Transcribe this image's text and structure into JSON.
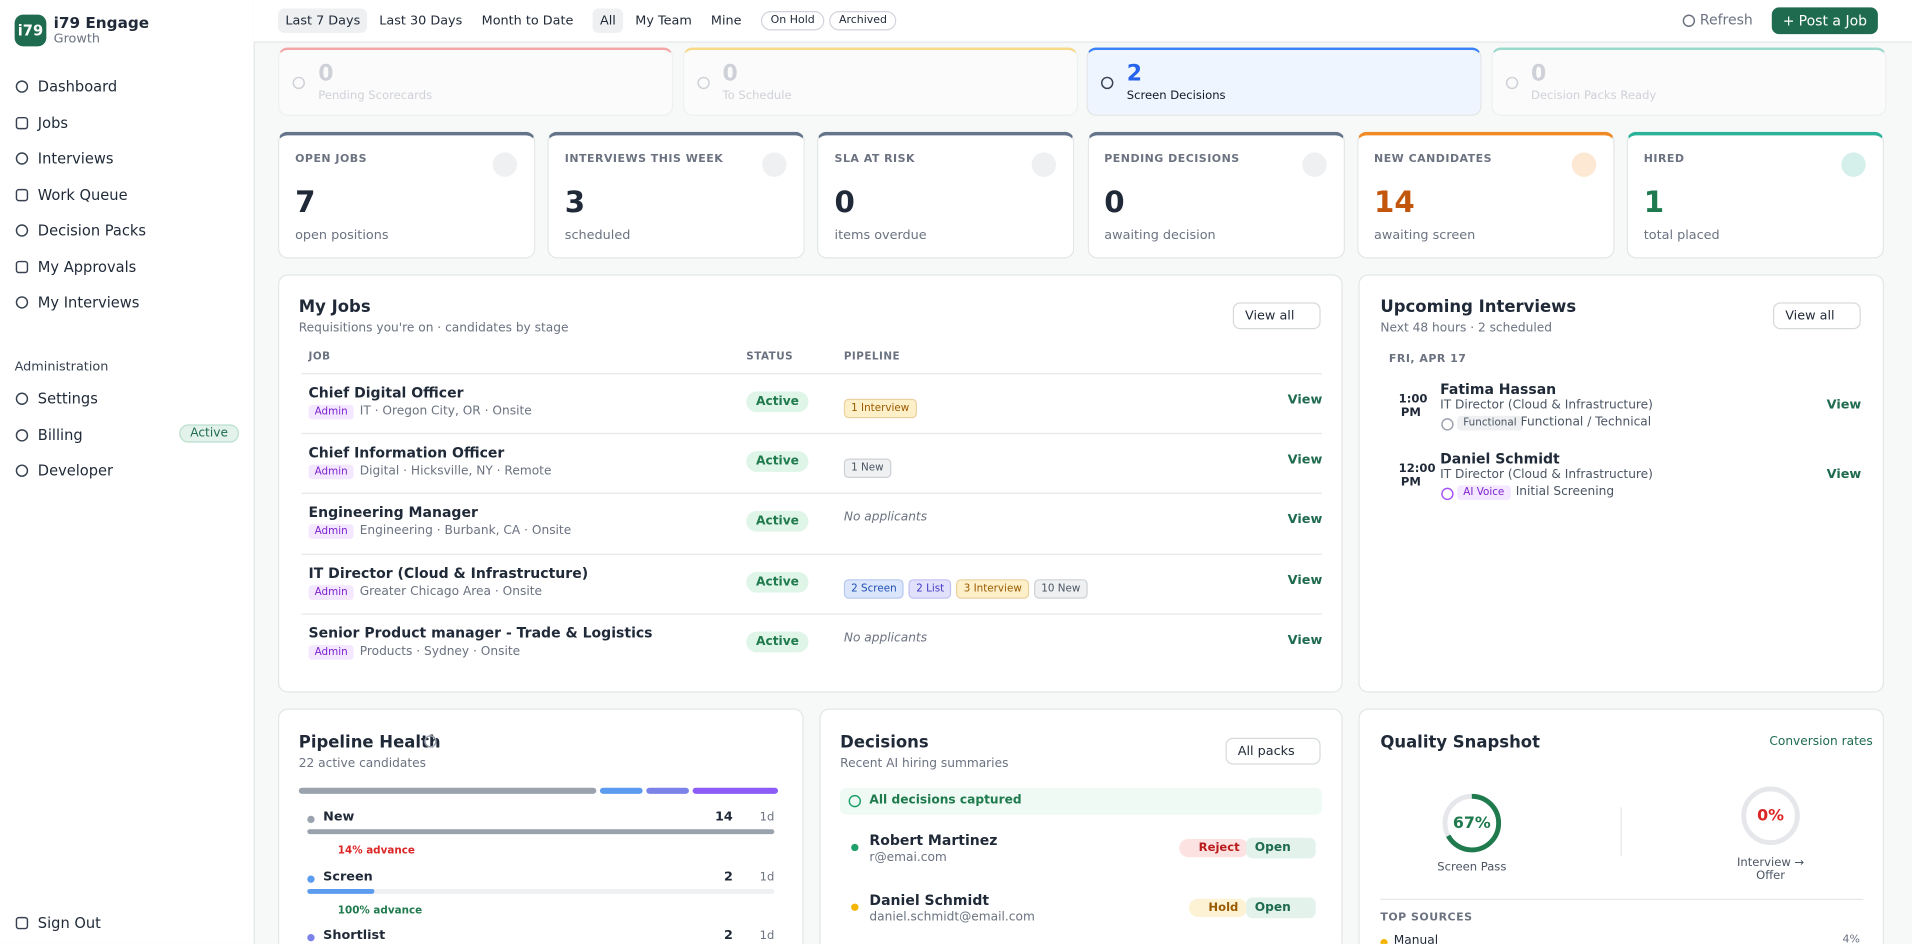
{
  "sidebar": {
    "logo": "i79",
    "name": "i79 Engage",
    "plan": "Growth",
    "nav": [
      "Dashboard",
      "Jobs",
      "Interviews",
      "Work Queue",
      "Decision Packs",
      "My Approvals",
      "My Interviews"
    ],
    "admin_heading": "Administration",
    "admin": [
      {
        "label": "Settings"
      },
      {
        "label": "Billing",
        "badge": "Active"
      },
      {
        "label": "Developer"
      }
    ],
    "sign_out": "Sign Out"
  },
  "toolbar": {
    "ranges": [
      "Last 7 Days",
      "Last 30 Days",
      "Month to Date"
    ],
    "scopes": [
      "All",
      "My Team",
      "Mine"
    ],
    "filters": [
      "On Hold",
      "Archived"
    ],
    "refresh": "Refresh",
    "post": "Post a Job"
  },
  "alerts": [
    {
      "value": 0,
      "label": "Pending Scorecards",
      "color": "#ef4444"
    },
    {
      "value": 0,
      "label": "To Schedule",
      "color": "#f5b400"
    },
    {
      "value": 2,
      "label": "Screen Decisions",
      "color": "#3b82f6"
    },
    {
      "value": 0,
      "label": "Decision Packs Ready",
      "color": "#2bb39a"
    }
  ],
  "kpis": [
    {
      "title": "OPEN JOBS",
      "value": 7,
      "sub": "open positions",
      "color": "#64748b"
    },
    {
      "title": "INTERVIEWS THIS WEEK",
      "value": 3,
      "sub": "scheduled",
      "color": "#64748b"
    },
    {
      "title": "SLA AT RISK",
      "value": 0,
      "sub": "items overdue",
      "color": "#64748b"
    },
    {
      "title": "PENDING DECISIONS",
      "value": 0,
      "sub": "awaiting decision",
      "color": "#64748b"
    },
    {
      "title": "NEW CANDIDATES",
      "value": 14,
      "sub": "awaiting screen",
      "color": "#f08a24"
    },
    {
      "title": "HIRED",
      "value": 1,
      "sub": "total placed",
      "color": "#2bb39a"
    }
  ],
  "my_jobs": {
    "title": "My Jobs",
    "subtitle": "Requisitions you're on · candidates by stage",
    "view_all": "View all",
    "columns": [
      "JOB",
      "STATUS",
      "PIPELINE"
    ],
    "rows": [
      {
        "title": "Chief Digital Officer",
        "tag": "Admin",
        "meta": "IT · Oregon City, OR · Onsite",
        "status": "Active",
        "pipeline": [
          {
            "label": "1 Interview",
            "tone": "interview"
          }
        ],
        "action": "View"
      },
      {
        "title": "Chief Information Officer",
        "tag": "Admin",
        "meta": "Digital · Hicksville, NY · Remote",
        "status": "Active",
        "pipeline": [
          {
            "label": "1 New",
            "tone": "new"
          }
        ],
        "action": "View"
      },
      {
        "title": "Engineering Manager",
        "tag": "Admin",
        "meta": "Engineering · Burbank, CA · Onsite",
        "status": "Active",
        "note": "No applicants",
        "action": "View"
      },
      {
        "title": "IT Director (Cloud & Infrastructure)",
        "tag": "Admin",
        "meta": "Greater Chicago Area · Onsite",
        "status": "Active",
        "pipeline": [
          {
            "label": "2 Screen",
            "tone": "screen"
          },
          {
            "label": "2 List",
            "tone": "list"
          },
          {
            "label": "3 Interview",
            "tone": "interview"
          },
          {
            "label": "10 New",
            "tone": "new"
          }
        ],
        "action": "View"
      },
      {
        "title": "Senior Product manager - Trade & Logistics",
        "tag": "Admin",
        "meta": "Products · Sydney · Onsite",
        "status": "Active",
        "note": "No applicants",
        "action": "View"
      }
    ]
  },
  "upcoming": {
    "title": "Upcoming Interviews",
    "subtitle": "Next 48 hours · 2 scheduled",
    "view_all": "View all",
    "date": "FRI, APR 17",
    "items": [
      {
        "time": "1:00",
        "ampm": "PM",
        "name": "Fatima Hassan",
        "role": "IT Director (Cloud & Infrastructure)",
        "tag": "Functional",
        "type": "Functional / Technical",
        "action": "View"
      },
      {
        "time": "12:00",
        "ampm": "PM",
        "name": "Daniel Schmidt",
        "role": "IT Director (Cloud & Infrastructure)",
        "tag": "AI Voice",
        "type": "Initial Screening",
        "action": "View"
      }
    ]
  },
  "pipeline_health": {
    "title": "Pipeline Health",
    "subtitle": "22 active candidates",
    "distribution": [
      {
        "value": 14,
        "color": "#9aa3ad"
      },
      {
        "value": 2,
        "color": "#5b9cf0"
      },
      {
        "value": 2,
        "color": "#7c83e8"
      },
      {
        "value": 4,
        "color": "#8b5cf6"
      }
    ],
    "stages": [
      {
        "name": "New",
        "count": 14,
        "age": "1d",
        "advance": "14% advance",
        "color": "#9aa3ad"
      },
      {
        "name": "Screen",
        "count": 2,
        "age": "1d",
        "advance": "100% advance",
        "color": "#5b9cf0"
      },
      {
        "name": "Shortlist",
        "count": 2,
        "age": "1d",
        "color": "#7c83e8"
      }
    ]
  },
  "decisions": {
    "title": "Decisions",
    "subtitle": "Recent AI hiring summaries",
    "button": "All packs",
    "banner": "All decisions captured",
    "items": [
      {
        "name": "Robert Martinez",
        "email": "r@emai.com",
        "verdict": "Reject",
        "action": "Open",
        "dot": "#22a06b"
      },
      {
        "name": "Daniel Schmidt",
        "email": "daniel.schmidt@email.com",
        "verdict": "Hold",
        "action": "Open",
        "dot": "#f5b400"
      }
    ]
  },
  "quality": {
    "title": "Quality Snapshot",
    "link": "Conversion rates",
    "metrics": [
      {
        "value": 67,
        "value_label": "67%",
        "label": "Screen Pass",
        "color": "#1f7a4d"
      },
      {
        "value": 0,
        "value_label": "0%",
        "label": "Interview → Offer",
        "color": "#dc2626"
      }
    ],
    "sources_heading": "TOP SOURCES",
    "sources": [
      {
        "name": "Manual",
        "value_label": "4%"
      }
    ]
  }
}
